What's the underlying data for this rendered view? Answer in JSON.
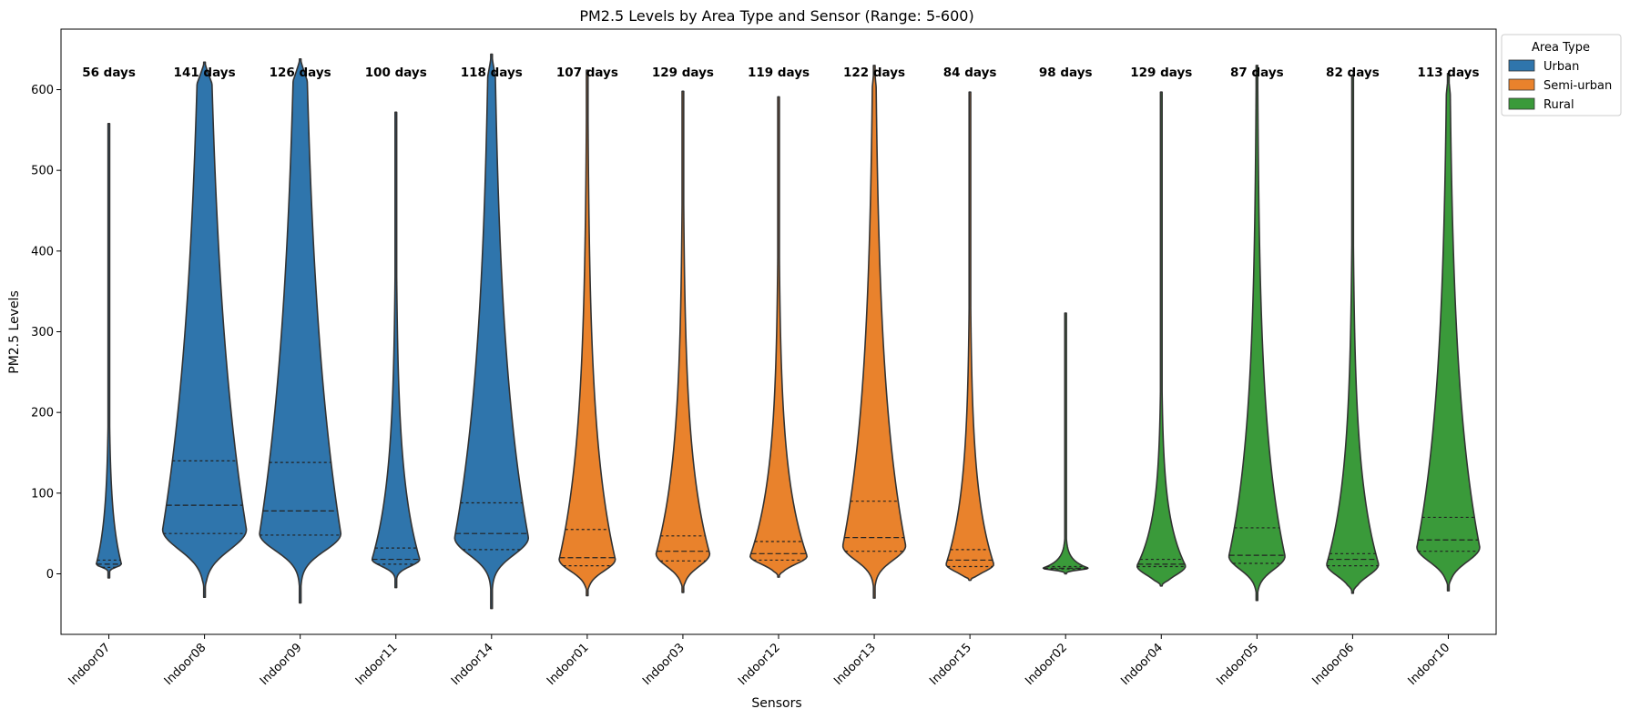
{
  "chart_data": {
    "type": "violin",
    "title": "PM2.5 Levels by Area Type and Sensor (Range: 5-600)",
    "xlabel": "Sensors",
    "ylabel": "PM2.5 Levels",
    "ylim": [
      -75,
      675
    ],
    "yticks": [
      0,
      100,
      200,
      300,
      400,
      500,
      600
    ],
    "legend": {
      "title": "Area Type",
      "placement": "upper-right-outside",
      "entries": [
        {
          "name": "Urban",
          "color": "#2f75ac"
        },
        {
          "name": "Semi-urban",
          "color": "#e9822c"
        },
        {
          "name": "Rural",
          "color": "#3a9a3a"
        }
      ]
    },
    "sensors": [
      {
        "name": "Indoor07",
        "area": "Urban",
        "days": "56 days",
        "min": -5,
        "max": 558,
        "peak": 12,
        "lower": 5,
        "upper": 60,
        "maxdens": 0.3,
        "q1": 8,
        "median": 12,
        "q3": 17
      },
      {
        "name": "Indoor08",
        "area": "Urban",
        "days": "141 days",
        "min": -29,
        "max": 634,
        "peak": 55,
        "lower": 35,
        "upper": 320,
        "maxdens": 1.0,
        "q1": 50,
        "median": 85,
        "q3": 140
      },
      {
        "name": "Indoor09",
        "area": "Urban",
        "days": "126 days",
        "min": -36,
        "max": 638,
        "peak": 50,
        "lower": 30,
        "upper": 320,
        "maxdens": 0.97,
        "q1": 48,
        "median": 78,
        "q3": 138
      },
      {
        "name": "Indoor11",
        "area": "Urban",
        "days": "100 days",
        "min": -17,
        "max": 572,
        "peak": 18,
        "lower": 12,
        "upper": 100,
        "maxdens": 0.57,
        "q1": 12,
        "median": 18,
        "q3": 32
      },
      {
        "name": "Indoor14",
        "area": "Urban",
        "days": "118 days",
        "min": -43,
        "max": 644,
        "peak": 45,
        "lower": 30,
        "upper": 250,
        "maxdens": 0.88,
        "q1": 30,
        "median": 50,
        "q3": 88
      },
      {
        "name": "Indoor01",
        "area": "Semi-urban",
        "days": "107 days",
        "min": -27,
        "max": 624,
        "peak": 18,
        "lower": 20,
        "upper": 150,
        "maxdens": 0.67,
        "q1": 10,
        "median": 20,
        "q3": 55
      },
      {
        "name": "Indoor03",
        "area": "Semi-urban",
        "days": "129 days",
        "min": -23,
        "max": 598,
        "peak": 25,
        "lower": 22,
        "upper": 120,
        "maxdens": 0.64,
        "q1": 16,
        "median": 28,
        "q3": 47
      },
      {
        "name": "Indoor12",
        "area": "Semi-urban",
        "days": "119 days",
        "min": -4,
        "max": 591,
        "peak": 22,
        "lower": 14,
        "upper": 100,
        "maxdens": 0.68,
        "q1": 17,
        "median": 25,
        "q3": 40
      },
      {
        "name": "Indoor13",
        "area": "Semi-urban",
        "days": "122 days",
        "min": -30,
        "max": 630,
        "peak": 35,
        "lower": 25,
        "upper": 200,
        "maxdens": 0.75,
        "q1": 28,
        "median": 45,
        "q3": 90
      },
      {
        "name": "Indoor15",
        "area": "Semi-urban",
        "days": "84 days",
        "min": -8,
        "max": 597,
        "peak": 12,
        "lower": 13,
        "upper": 90,
        "maxdens": 0.57,
        "q1": 9,
        "median": 17,
        "q3": 30
      },
      {
        "name": "Indoor02",
        "area": "Rural",
        "days": "98 days",
        "min": 0,
        "max": 323,
        "peak": 7,
        "lower": 3,
        "upper": 10,
        "maxdens": 0.55,
        "q1": 6,
        "median": 7,
        "q3": 9
      },
      {
        "name": "Indoor04",
        "area": "Rural",
        "days": "129 days",
        "min": -15,
        "max": 597,
        "peak": 10,
        "lower": 16,
        "upper": 60,
        "maxdens": 0.58,
        "q1": 9,
        "median": 12,
        "q3": 18
      },
      {
        "name": "Indoor05",
        "area": "Rural",
        "days": "87 days",
        "min": -33,
        "max": 630,
        "peak": 22,
        "lower": 23,
        "upper": 160,
        "maxdens": 0.67,
        "q1": 13,
        "median": 23,
        "q3": 57
      },
      {
        "name": "Indoor06",
        "area": "Rural",
        "days": "82 days",
        "min": -24,
        "max": 616,
        "peak": 12,
        "lower": 20,
        "upper": 110,
        "maxdens": 0.62,
        "q1": 10,
        "median": 18,
        "q3": 25
      },
      {
        "name": "Indoor10",
        "area": "Rural",
        "days": "113 days",
        "min": -21,
        "max": 620,
        "peak": 33,
        "lower": 25,
        "upper": 200,
        "maxdens": 0.75,
        "q1": 28,
        "median": 42,
        "q3": 70
      }
    ]
  }
}
